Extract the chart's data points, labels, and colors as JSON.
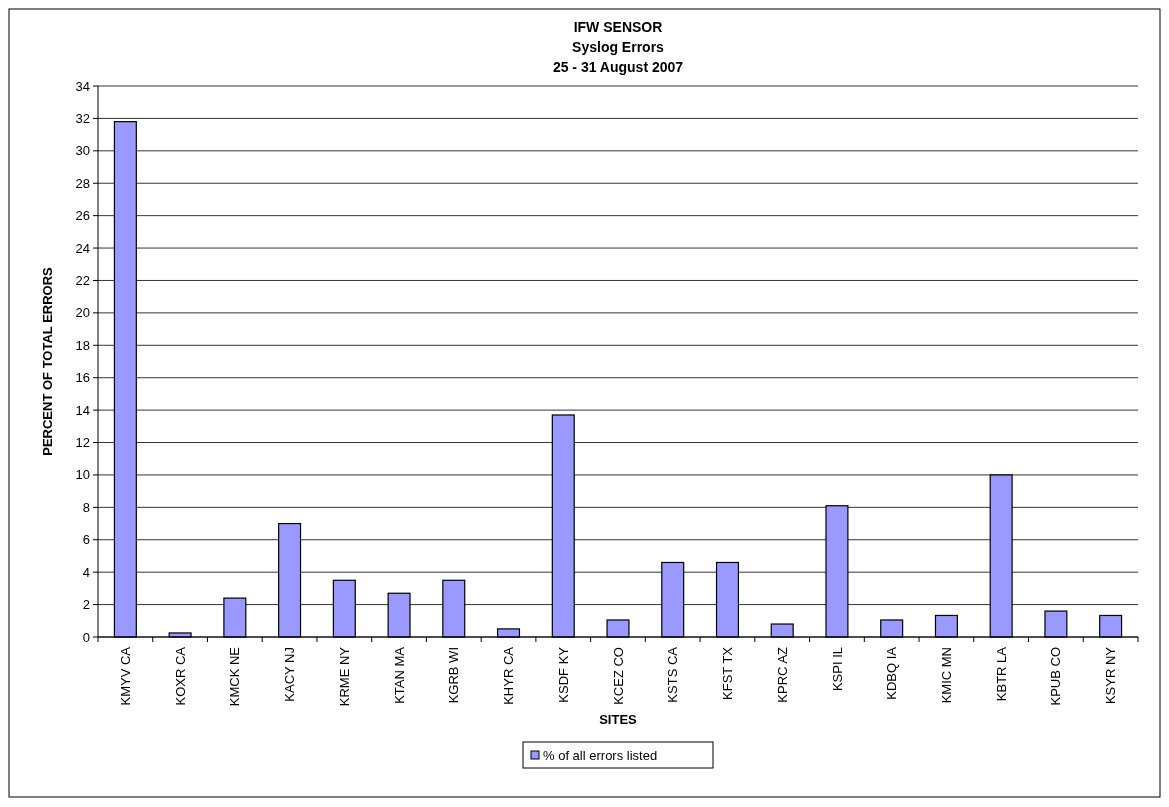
{
  "chart_data": {
    "type": "bar",
    "title": "IFW SENSOR",
    "subtitle": [
      "Syslog Errors",
      "25 - 31 August 2007"
    ],
    "xlabel": "SITES",
    "ylabel": "PERCENT OF TOTAL ERRORS",
    "categories": [
      "KMYV CA",
      "KOXR CA",
      "KMCK NE",
      "KACY NJ",
      "KRME NY",
      "KTAN MA",
      "KGRB WI",
      "KHYR CA",
      "KSDF KY",
      "KCEZ CO",
      "KSTS CA",
      "KFST TX",
      "KPRC AZ",
      "KSPI IL",
      "KDBQ IA",
      "KMIC MN",
      "KBTR LA",
      "KPUB CO",
      "KSYR NY"
    ],
    "series": [
      {
        "name": "% of all errors listed",
        "color": "#9999ff",
        "values": [
          31.8,
          0.25,
          2.4,
          7.0,
          3.5,
          2.7,
          3.5,
          0.5,
          13.7,
          1.05,
          4.6,
          4.6,
          0.8,
          8.1,
          1.05,
          1.33,
          10.0,
          1.6,
          1.33
        ]
      }
    ],
    "ylim": [
      0,
      34
    ],
    "yticks": [
      0,
      2,
      4,
      6,
      8,
      10,
      12,
      14,
      16,
      18,
      20,
      22,
      24,
      26,
      28,
      30,
      32,
      34
    ],
    "grid": "y",
    "legend": "bottom"
  }
}
